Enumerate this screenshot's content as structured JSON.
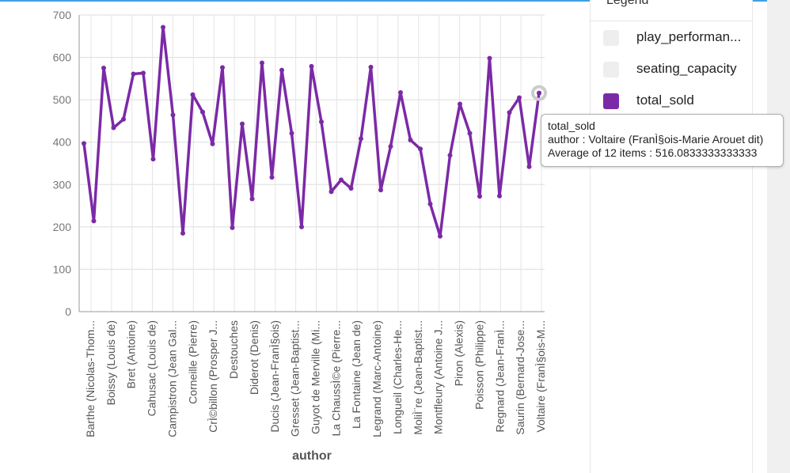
{
  "chart_data": {
    "type": "line",
    "xlabel": "author",
    "ylabel": "",
    "ylim": [
      0,
      700
    ],
    "yticks": [
      "0",
      "100",
      "200",
      "300",
      "400",
      "500",
      "600",
      "700"
    ],
    "grid": true,
    "legend_position": "top-right",
    "x_tick_labels": [
      "Barthe (Nicolas-Thom...",
      "Boissy (Louis de)",
      "Bret (Antoine)",
      "Cahusac (Louis de)",
      "Campistron (Jean Gal...",
      "Corneille (Pierre)",
      "CrÌ©billon (Prosper J...",
      "Destouches",
      "Diderot (Denis)",
      "Ducis (Jean-FranÌ§ois)",
      "Gresset (Jean-Baptist...",
      "Guyot de Merville (Mi...",
      "La ChaussÌ©e (Pierre...",
      "La Fontaine (Jean de)",
      "Legrand (Marc-Antoine)",
      "Longueil (Charles-He...",
      "MoliÌ¨re (Jean-Baptist...",
      "Montfleury (Antoine J...",
      "Piron (Alexis)",
      "Poisson (Philippe)",
      "Regnard (Jean-FranÌ...",
      "Saurin (Bernard-Jose...",
      "Voltaire (FranÌ§ois-M..."
    ],
    "series": [
      {
        "name": "total_sold",
        "color": "#7b2aa6",
        "values": [
          397,
          214,
          575,
          434,
          454,
          561,
          563,
          360,
          671,
          464,
          185,
          512,
          471,
          396,
          576,
          198,
          443,
          266,
          587,
          317,
          570,
          421,
          200,
          579,
          448,
          283,
          311,
          291,
          408,
          577,
          287,
          390,
          517,
          405,
          384,
          254,
          178,
          369,
          490,
          421,
          272,
          598,
          273,
          470,
          505,
          342,
          516
        ]
      }
    ]
  },
  "legend": {
    "title": "Legend",
    "items": [
      {
        "label": "play_performan...",
        "color": "#eeeeee"
      },
      {
        "label": "seating_capacity",
        "color": "#eeeeee"
      },
      {
        "label": "total_sold",
        "color": "#7b2aa6"
      }
    ]
  },
  "tooltip": {
    "series": "total_sold",
    "line2": "author : Voltaire (FranÌ§ois-Marie Arouet dit)",
    "line3": "Average of 12 items : 516.0833333333333"
  }
}
